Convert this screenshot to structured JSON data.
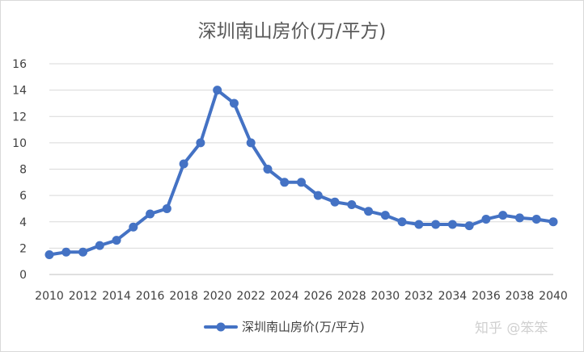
{
  "chart_data": {
    "type": "line",
    "title": "深圳南山房价(万/平方)",
    "xlabel": "",
    "ylabel": "",
    "xlim": [
      2010,
      2040
    ],
    "ylim": [
      0,
      16
    ],
    "y_ticks": [
      0,
      2,
      4,
      6,
      8,
      10,
      12,
      14,
      16
    ],
    "x_ticks": [
      2010,
      2012,
      2014,
      2016,
      2018,
      2020,
      2022,
      2024,
      2026,
      2028,
      2030,
      2032,
      2034,
      2036,
      2038,
      2040
    ],
    "grid": true,
    "legend_position": "bottom",
    "series": [
      {
        "name": "深圳南山房价(万/平方)",
        "color": "#4472c4",
        "x": [
          2010,
          2011,
          2012,
          2013,
          2014,
          2015,
          2016,
          2017,
          2018,
          2019,
          2020,
          2021,
          2022,
          2023,
          2024,
          2025,
          2026,
          2027,
          2028,
          2029,
          2030,
          2031,
          2032,
          2033,
          2034,
          2035,
          2036,
          2037,
          2038,
          2039,
          2040
        ],
        "values": [
          1.5,
          1.7,
          1.7,
          2.2,
          2.6,
          3.6,
          4.6,
          5.0,
          8.4,
          10.0,
          14.0,
          13.0,
          10.0,
          8.0,
          7.0,
          7.0,
          6.0,
          5.5,
          5.3,
          4.8,
          4.5,
          4.0,
          3.8,
          3.8,
          3.8,
          3.7,
          4.2,
          4.5,
          4.3,
          4.2,
          4.0
        ]
      }
    ]
  },
  "watermark": {
    "text": "知乎 @笨笨"
  }
}
